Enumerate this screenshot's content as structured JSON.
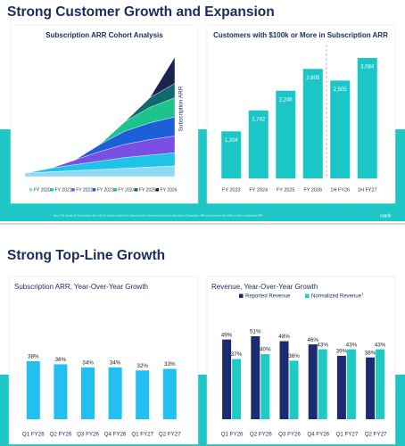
{
  "slides": [
    {
      "title": "Strong Customer Growth and Expansion",
      "footnote": "Note: FYE January 31. Fiscal Quarter End: July 31. Data as of July 31 for Cohort Analysis. Please see Appendix for description of Subscription ARR and Customers with $100k or More in Subscription ARR.",
      "logo": "rubrik"
    },
    {
      "title": "Strong Top-Line Growth"
    }
  ],
  "chart_data": [
    {
      "type": "area",
      "stacked": true,
      "title": "Subscription ARR Cohort Analysis",
      "y_label": "Subscription ARR",
      "categories": [
        null,
        null,
        null,
        null,
        null,
        null,
        null
      ],
      "series": [
        {
          "name": "FY 2020",
          "color": "#8fd9f2",
          "values": [
            3,
            4,
            5,
            6,
            7,
            8,
            9
          ]
        },
        {
          "name": "FY 2021",
          "color": "#1fc3e6",
          "values": [
            0,
            3,
            5,
            7,
            9,
            10,
            11
          ]
        },
        {
          "name": "FY 2022",
          "color": "#7a4fe3",
          "values": [
            0,
            0,
            4,
            8,
            11,
            13,
            14
          ]
        },
        {
          "name": "FY 2023",
          "color": "#1d5fd8",
          "values": [
            0,
            0,
            0,
            6,
            11,
            14,
            16
          ]
        },
        {
          "name": "FY 2024",
          "color": "#1cc48c",
          "values": [
            0,
            0,
            0,
            0,
            8,
            13,
            16
          ]
        },
        {
          "name": "FY 2025",
          "color": "#0f6b6b",
          "values": [
            0,
            0,
            0,
            0,
            0,
            8,
            12
          ]
        },
        {
          "name": "FY 2026",
          "color": "#1a2250",
          "values": [
            0,
            0,
            0,
            0,
            0,
            0,
            22
          ]
        }
      ]
    },
    {
      "type": "bar",
      "title": "Customers with $100k or More in Subscription ARR",
      "categories": [
        "FY 2023",
        "FY 2024",
        "FY 2025",
        "FY 2026",
        "1H FY26",
        "1H FY27"
      ],
      "values": [
        1204,
        1742,
        2246,
        2805,
        2505,
        3084
      ],
      "value_labels": [
        "1,204",
        "1,742",
        "2,246",
        "2,805",
        "2,505",
        "3,084"
      ],
      "color": "#1bc6c6"
    },
    {
      "type": "bar",
      "title": "Subscription ARR, Year-Over-Year Growth",
      "categories": [
        "Q1 FY26",
        "Q2 FY26",
        "Q3 FY26",
        "Q4 FY26",
        "Q1 FY27",
        "Q2 FY27"
      ],
      "values": [
        38,
        36,
        34,
        34,
        32,
        33
      ],
      "value_labels": [
        "38%",
        "36%",
        "34%",
        "34%",
        "32%",
        "33%"
      ],
      "color": "#22c0f0"
    },
    {
      "type": "bar",
      "title": "Revenue, Year-Over-Year Growth",
      "categories": [
        "Q1 FY26",
        "Q2 FY26",
        "Q3 FY26",
        "Q4 FY26",
        "Q1 FY27",
        "Q2 FY27"
      ],
      "series": [
        {
          "name": "Reported Revenue",
          "color": "#1c2a6e",
          "values": [
            49,
            51,
            48,
            46,
            39,
            38
          ],
          "value_labels": [
            "49%",
            "51%",
            "48%",
            "46%",
            "39%",
            "38%"
          ]
        },
        {
          "name": "Normalized Revenue",
          "name_note": "1",
          "color": "#1fcac2",
          "values": [
            37,
            40,
            36,
            43,
            43,
            43
          ],
          "value_labels": [
            "37%",
            "40%",
            "36%",
            "43%",
            "43%",
            "43%"
          ]
        }
      ]
    }
  ]
}
